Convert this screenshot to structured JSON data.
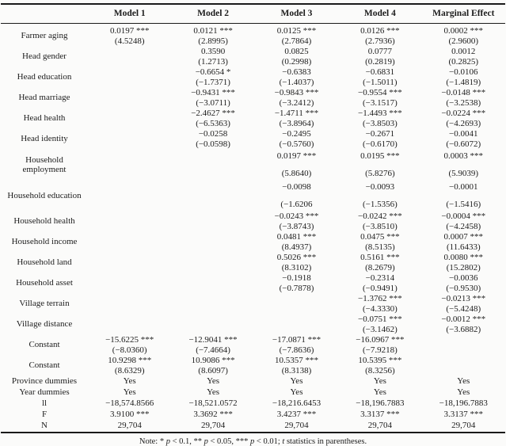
{
  "table": {
    "columns": [
      "",
      "Model 1",
      "Model 2",
      "Model 3",
      "Model 4",
      "Marginal Effect"
    ],
    "rows": [
      {
        "label": "Farmer aging",
        "cells": [
          [
            "0.0197 ***",
            "(4.5248)"
          ],
          [
            "0.0121 ***",
            "(2.8995)"
          ],
          [
            "0.0125 ***",
            "(2.7864)"
          ],
          [
            "0.0126 ***",
            "(2.7936)"
          ],
          [
            "0.0002 ***",
            "(2.9600)"
          ]
        ]
      },
      {
        "label": "Head gender",
        "cells": [
          [],
          [
            "0.3590",
            "(1.2713)"
          ],
          [
            "0.0825",
            "(0.2998)"
          ],
          [
            "0.0777",
            "(0.2819)"
          ],
          [
            "0.0012",
            "(0.2825)"
          ]
        ]
      },
      {
        "label": "Head education",
        "cells": [
          [],
          [
            "−0.6654 *",
            "(−1.7371)"
          ],
          [
            "−0.6383",
            "(−1.4037)"
          ],
          [
            "−0.6831",
            "(−1.5011)"
          ],
          [
            "−0.0106",
            "(−1.4819)"
          ]
        ]
      },
      {
        "label": "Head marriage",
        "cells": [
          [],
          [
            "−0.9431 ***",
            "(−3.0711)"
          ],
          [
            "−0.9843 ***",
            "(−3.2412)"
          ],
          [
            "−0.9554 ***",
            "(−3.1517)"
          ],
          [
            "−0.0148 ***",
            "(−3.2538)"
          ]
        ]
      },
      {
        "label": "Head health",
        "cells": [
          [],
          [
            "−2.4627 ***",
            "(−6.5363)"
          ],
          [
            "−1.4711 ***",
            "(−3.8964)"
          ],
          [
            "−1.4493 ***",
            "(−3.8503)"
          ],
          [
            "−0.0224 ***",
            "(−4.2693)"
          ]
        ]
      },
      {
        "label": "Head identity",
        "cells": [
          [],
          [
            "−0.0258",
            "(−0.0598)"
          ],
          [
            "−0.2495",
            "(−0.5760)"
          ],
          [
            "−0.2671",
            "(−0.6170)"
          ],
          [
            "−0.0041",
            "(−0.6072)"
          ]
        ]
      },
      {
        "label": "Household employment",
        "tall": true,
        "cells": [
          [],
          [],
          [
            "0.0197 ***",
            "(5.8640)"
          ],
          [
            "0.0195 ***",
            "(5.8276)"
          ],
          [
            "0.0003 ***",
            "(5.9039)"
          ]
        ]
      },
      {
        "label": "Household education",
        "tall": true,
        "cells": [
          [],
          [],
          [
            "−0.0098",
            "(−1.6206"
          ],
          [
            "−0.0093",
            "(−1.5356)"
          ],
          [
            "−0.0001",
            "(−1.5416)"
          ]
        ]
      },
      {
        "label": "Household health",
        "cells": [
          [],
          [],
          [
            "−0.0243 ***",
            "(−3.8743)"
          ],
          [
            "−0.0242 ***",
            "(−3.8510)"
          ],
          [
            "−0.0004 ***",
            "(−4.2458)"
          ]
        ]
      },
      {
        "label": "Household income",
        "cells": [
          [],
          [],
          [
            "0.0481 ***",
            "(8.4937)"
          ],
          [
            "0.0475 ***",
            "(8.5135)"
          ],
          [
            "0.0007 ***",
            "(11.6433)"
          ]
        ]
      },
      {
        "label": "Household land",
        "cells": [
          [],
          [],
          [
            "0.5026 ***",
            "(8.3102)"
          ],
          [
            "0.5161 ***",
            "(8.2679)"
          ],
          [
            "0.0080 ***",
            "(15.2802)"
          ]
        ]
      },
      {
        "label": "Household asset",
        "cells": [
          [],
          [],
          [
            "−0.1918",
            "(−0.7878)"
          ],
          [
            "−0.2314",
            "(−0.9491)"
          ],
          [
            "−0.0036",
            "(−0.9530)"
          ]
        ]
      },
      {
        "label": "Village terrain",
        "cells": [
          [],
          [],
          [],
          [
            "−1.3762 ***",
            "(−4.3330)"
          ],
          [
            "−0.0213 ***",
            "(−5.4248)"
          ]
        ]
      },
      {
        "label": "Village distance",
        "cells": [
          [],
          [],
          [],
          [
            "−0.0751 ***",
            "(−3.1462)"
          ],
          [
            "−0.0012 ***",
            "(−3.6882)"
          ]
        ]
      },
      {
        "label": "Constant",
        "cells": [
          [
            "−15.6225 ***",
            "(−8.0360)"
          ],
          [
            "−12.9041 ***",
            "(−7.4664)"
          ],
          [
            "−17.0871 ***",
            "(−7.8636)"
          ],
          [
            "−16.0967 ***",
            "(−7.9218)"
          ],
          []
        ]
      },
      {
        "label": "Constant",
        "cells": [
          [
            "10.9298 ***",
            "(8.6329)"
          ],
          [
            "10.9086 ***",
            "(8.6097)"
          ],
          [
            "10.5357 ***",
            "(8.3138)"
          ],
          [
            "10.5395 ***",
            "(8.3256)"
          ],
          []
        ]
      },
      {
        "label": "Province dummies",
        "cells": [
          [
            "Yes"
          ],
          [
            "Yes"
          ],
          [
            "Yes"
          ],
          [
            "Yes"
          ],
          [
            "Yes"
          ]
        ]
      },
      {
        "label": "Year dummies",
        "cells": [
          [
            "Yes"
          ],
          [
            "Yes"
          ],
          [
            "Yes"
          ],
          [
            "Yes"
          ],
          [
            "Yes"
          ]
        ]
      },
      {
        "label": "ll",
        "cells": [
          [
            "−18,574.8566"
          ],
          [
            "−18,521.0572"
          ],
          [
            "−18,216.6453"
          ],
          [
            "−18,196.7883"
          ],
          [
            "−18,196.7883"
          ]
        ]
      },
      {
        "label": "F",
        "cells": [
          [
            "3.9100 ***"
          ],
          [
            "3.3692 ***"
          ],
          [
            "3.4237 ***"
          ],
          [
            "3.3137 ***"
          ],
          [
            "3.3137 ***"
          ]
        ]
      },
      {
        "label": "N",
        "cells": [
          [
            "29,704"
          ],
          [
            "29,704"
          ],
          [
            "29,704"
          ],
          [
            "29,704"
          ],
          [
            "29,704"
          ]
        ]
      }
    ]
  },
  "note": {
    "segments": [
      {
        "text": "Note: * "
      },
      {
        "text": "p",
        "italic": true
      },
      {
        "text": " < 0.1, ** "
      },
      {
        "text": "p",
        "italic": true
      },
      {
        "text": " < 0.05, *** "
      },
      {
        "text": "p",
        "italic": true
      },
      {
        "text": " < 0.01; "
      },
      {
        "text": "t",
        "italic": true
      },
      {
        "text": " statistics in parentheses."
      }
    ]
  }
}
